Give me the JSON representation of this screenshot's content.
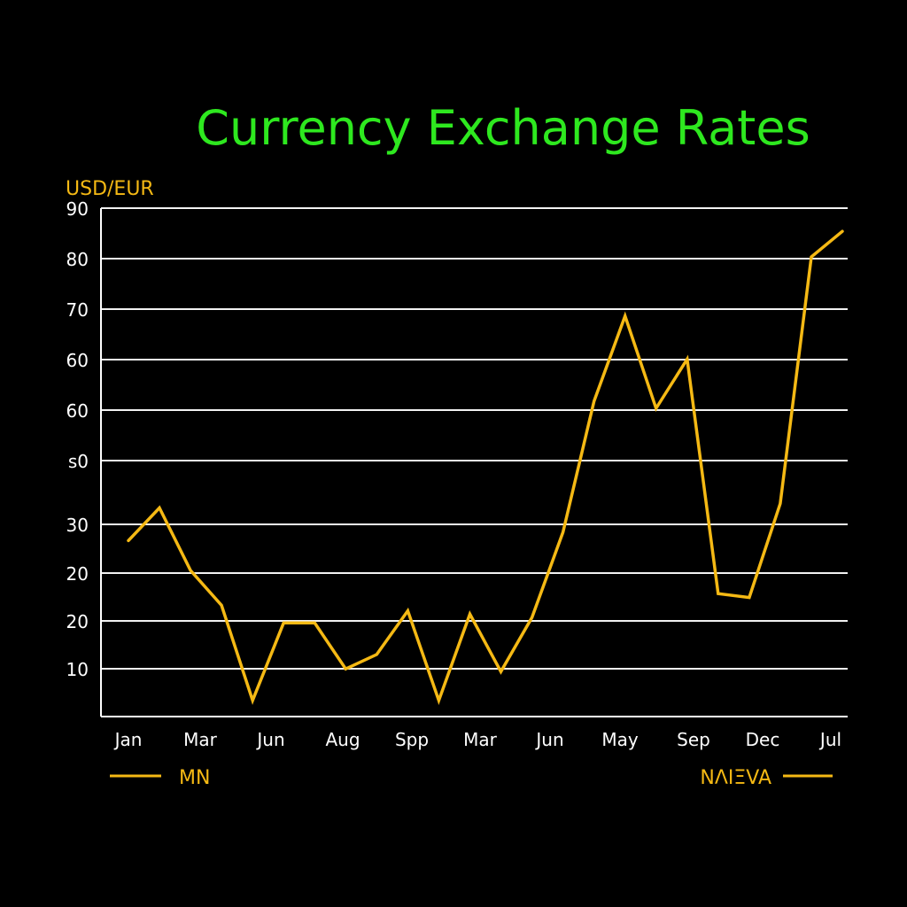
{
  "chart_data": {
    "type": "line",
    "title": "Currency Exchange Rates",
    "ylabel": "USD/EUR",
    "xlabel": "",
    "y_tick_labels": [
      "90",
      "80",
      "70",
      "60",
      "60",
      "ꜱ0",
      "30",
      "20",
      "20",
      "10"
    ],
    "x_tick_labels": [
      "Jan",
      "Mar",
      "Jun",
      "Aug",
      "Spp",
      "Mar",
      "Jun",
      "May",
      "Sep",
      "Dec",
      "Jul"
    ],
    "grid": true,
    "legend": {
      "placement": "bottom",
      "entries": [
        {
          "label": "MN"
        },
        {
          "label": "NΛIΞVA"
        }
      ]
    },
    "series": [
      {
        "values": [
          29.9,
          35.8,
          24.5,
          18.2,
          1.0,
          15.0,
          15.0,
          6.7,
          9.3,
          17.2,
          1.0,
          16.6,
          6.2,
          16.0,
          31.4,
          55.1,
          70.5,
          53.8,
          62.7,
          20.3,
          19.6,
          36.6,
          81.2,
          85.8
        ]
      }
    ],
    "colors": {
      "background": "#000000",
      "title": "#2ee81f",
      "line": "#f5b914",
      "grid": "#f2f2f2",
      "axis": "#ffffff",
      "ylabel": "#f5b914",
      "ticks": "#ffffff",
      "legend": "#f5b914"
    }
  }
}
